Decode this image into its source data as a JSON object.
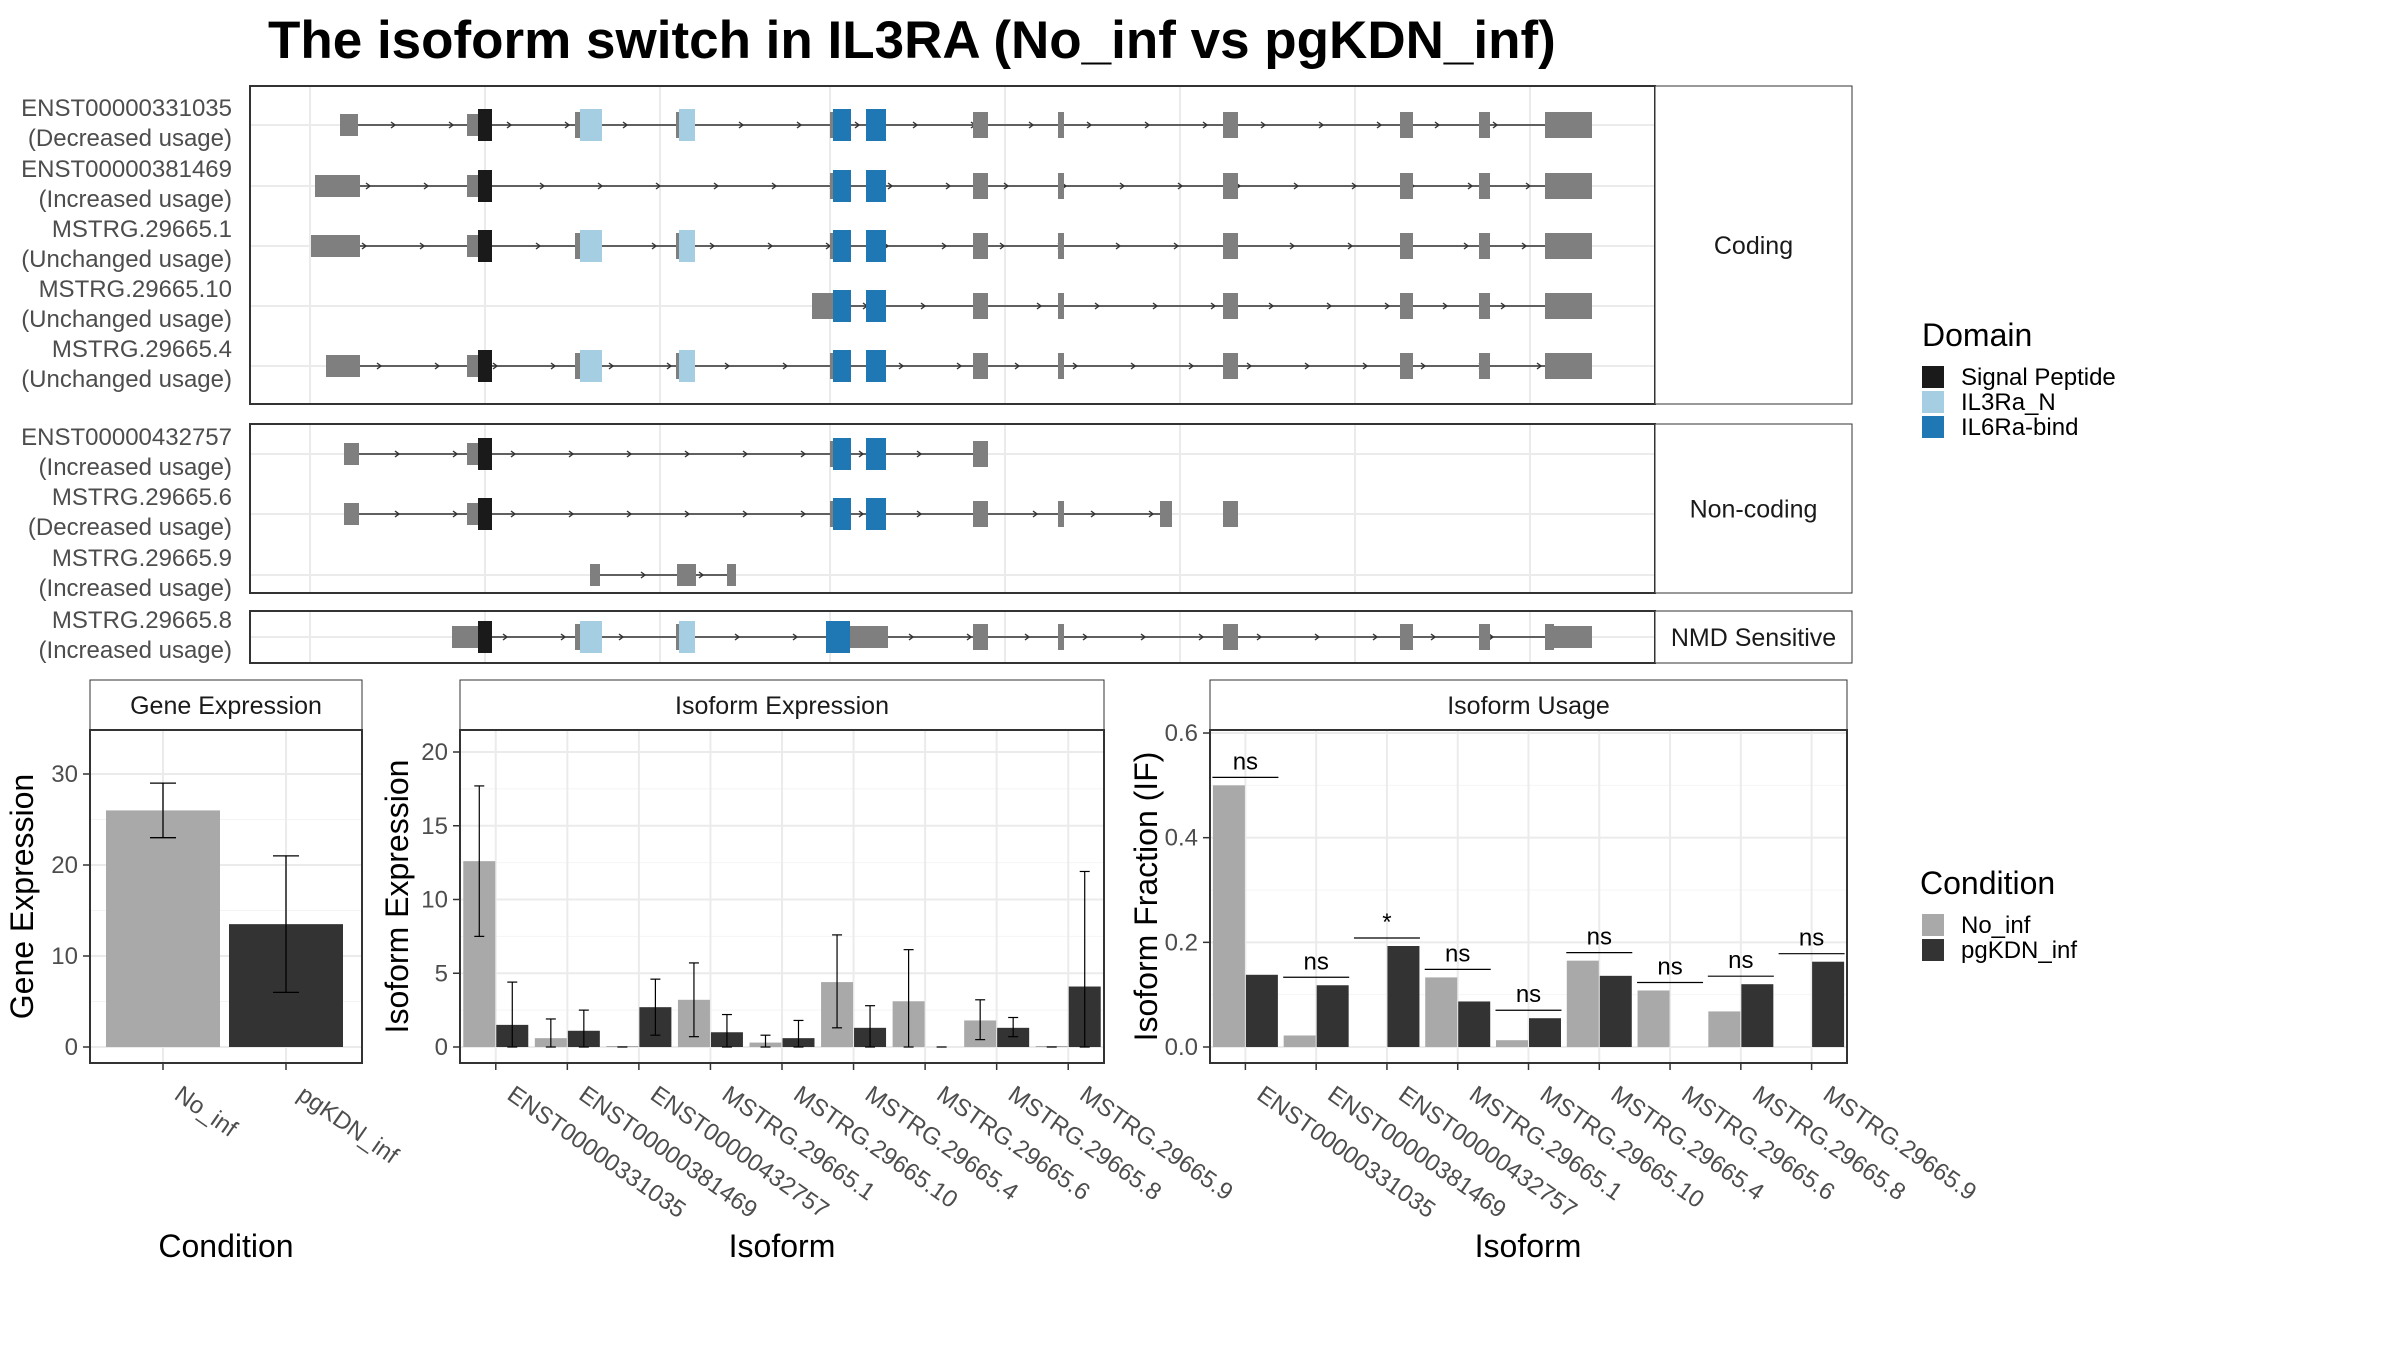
{
  "title": "The isoform switch in IL3RA (No_inf vs pgKDN_inf)",
  "colors": {
    "exon": "#7f7f7f",
    "intron": "#333333",
    "signal_peptide": "#1a1a1a",
    "il3ra_n": "#a6cee3",
    "il6ra_bind": "#1f78b4",
    "no_inf": "#a9a9a9",
    "pgkdn_inf": "#333333"
  },
  "domain_legend": {
    "title": "Domain",
    "items": [
      {
        "label": "Signal Peptide",
        "color": "#1a1a1a"
      },
      {
        "label": "IL3Ra_N",
        "color": "#a6cee3"
      },
      {
        "label": "IL6Ra-bind",
        "color": "#1f78b4"
      }
    ]
  },
  "condition_legend": {
    "title": "Condition",
    "items": [
      {
        "label": "No_inf",
        "color": "#a9a9a9"
      },
      {
        "label": "pgKDN_inf",
        "color": "#333333"
      }
    ]
  },
  "structure_groups": [
    {
      "label": "Coding",
      "transcripts": [
        {
          "id": "ENST00000331035",
          "usage": "(Decreased usage)"
        },
        {
          "id": "ENST00000381469",
          "usage": "(Increased usage)"
        },
        {
          "id": "MSTRG.29665.1",
          "usage": "(Unchanged usage)"
        },
        {
          "id": "MSTRG.29665.10",
          "usage": "(Unchanged usage)"
        },
        {
          "id": "MSTRG.29665.4",
          "usage": "(Unchanged usage)"
        }
      ]
    },
    {
      "label": "Non-coding",
      "transcripts": [
        {
          "id": "ENST00000432757",
          "usage": "(Increased usage)"
        },
        {
          "id": "MSTRG.29665.6",
          "usage": "(Decreased usage)"
        },
        {
          "id": "MSTRG.29665.9",
          "usage": "(Increased usage)"
        }
      ]
    },
    {
      "label": "NMD Sensitive",
      "transcripts": [
        {
          "id": "MSTRG.29665.8",
          "usage": "(Increased usage)"
        }
      ]
    }
  ],
  "chart_data": [
    {
      "type": "bar",
      "strip": "Gene Expression",
      "xlabel": "Condition",
      "ylabel": "Gene Expression",
      "ylim": [
        0,
        35
      ],
      "yticks": [
        0,
        10,
        20,
        30
      ],
      "categories": [
        "No_inf",
        "pgKDN_inf"
      ],
      "values": [
        26,
        13.5
      ],
      "error": [
        [
          23,
          29
        ],
        [
          6,
          21
        ]
      ]
    },
    {
      "type": "bar",
      "strip": "Isoform Expression",
      "xlabel": "Isoform",
      "ylabel": "Isoform Expression",
      "ylim": [
        0,
        21.5
      ],
      "yticks": [
        0,
        5,
        10,
        15,
        20
      ],
      "categories": [
        "ENST00000331035",
        "ENST00000381469",
        "ENST00000432757",
        "MSTRG.29665.1",
        "MSTRG.29665.10",
        "MSTRG.29665.4",
        "MSTRG.29665.6",
        "MSTRG.29665.8",
        "MSTRG.29665.9"
      ],
      "series": [
        {
          "name": "No_inf",
          "values": [
            12.6,
            0.6,
            0.05,
            3.2,
            0.3,
            4.4,
            3.1,
            1.8,
            0.05
          ],
          "error": [
            [
              7.5,
              17.7
            ],
            [
              0.0,
              1.9
            ],
            null,
            [
              0.7,
              5.7
            ],
            [
              0.0,
              0.8
            ],
            [
              1.3,
              7.6
            ],
            [
              0.0,
              6.6
            ],
            [
              0.5,
              3.2
            ],
            null
          ]
        },
        {
          "name": "pgKDN_inf",
          "values": [
            1.5,
            1.1,
            2.7,
            1.0,
            0.6,
            1.3,
            0.0,
            1.3,
            4.1
          ],
          "error": [
            [
              0.0,
              4.4
            ],
            [
              0.0,
              2.5
            ],
            [
              0.8,
              4.6
            ],
            [
              0.0,
              2.2
            ],
            [
              0.0,
              1.8
            ],
            [
              0.0,
              2.8
            ],
            null,
            [
              0.7,
              2.0
            ],
            [
              0.0,
              11.9
            ]
          ]
        }
      ]
    },
    {
      "type": "bar",
      "strip": "Isoform Usage",
      "xlabel": "Isoform",
      "ylabel": "Isoform Fraction (IF)",
      "ylim": [
        0,
        0.6
      ],
      "yticks": [
        0.0,
        0.2,
        0.4,
        0.6
      ],
      "ytick_labels": [
        "0.0",
        "0.2",
        "0.4",
        "0.6"
      ],
      "categories": [
        "ENST00000331035",
        "ENST00000381469",
        "ENST00000432757",
        "MSTRG.29665.1",
        "MSTRG.29665.10",
        "MSTRG.29665.4",
        "MSTRG.29665.6",
        "MSTRG.29665.8",
        "MSTRG.29665.9"
      ],
      "series": [
        {
          "name": "No_inf",
          "values": [
            0.5,
            0.022,
            0.0,
            0.133,
            0.013,
            0.165,
            0.108,
            0.068,
            0.0
          ]
        },
        {
          "name": "pgKDN_inf",
          "values": [
            0.138,
            0.118,
            0.193,
            0.087,
            0.055,
            0.136,
            0.0,
            0.12,
            0.163
          ]
        }
      ],
      "significance": [
        "ns",
        "ns",
        "*",
        "ns",
        "ns",
        "ns",
        "ns",
        "ns",
        "ns"
      ]
    }
  ]
}
